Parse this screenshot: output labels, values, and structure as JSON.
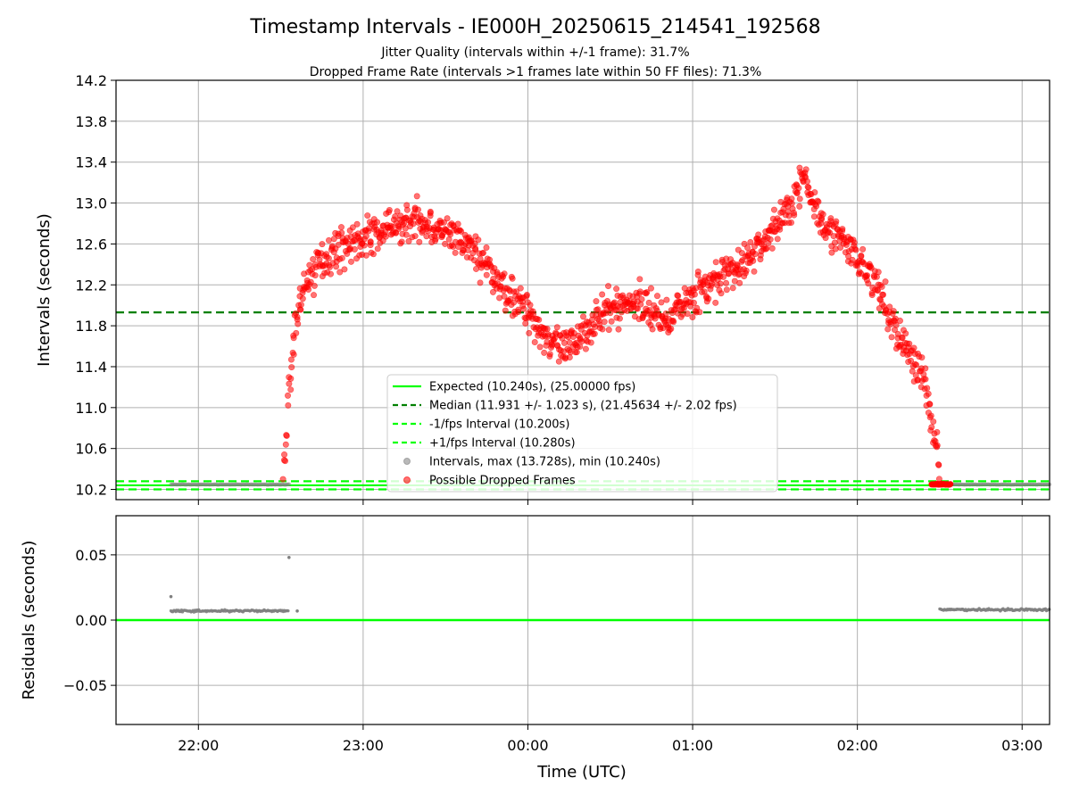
{
  "chart_data": [
    {
      "type": "scatter",
      "title": "Timestamp Intervals - IE000H_20250615_214541_192568",
      "subtitle_lines": [
        "Jitter Quality (intervals within +/-1 frame): 31.7%",
        "Dropped Frame Rate (intervals >1 frames late within 50 FF files): 71.3%"
      ],
      "ylabel": "Intervals (seconds)",
      "ylim": [
        10.1,
        14.2
      ],
      "yticks": [
        "10.2",
        "10.6",
        "11.0",
        "11.4",
        "11.8",
        "12.2",
        "12.6",
        "13.0",
        "13.4",
        "13.8",
        "14.2"
      ],
      "xlim": [
        "21:30",
        "03:10"
      ],
      "xticks": [
        "22:00",
        "23:00",
        "00:00",
        "01:00",
        "02:00",
        "03:00"
      ],
      "grid": true,
      "legend_position": "lower center",
      "lines": {
        "expected": 10.24,
        "median": 11.931,
        "minus_fps": 10.2,
        "plus_fps": 10.28
      },
      "legend": [
        "Expected (10.240s), (25.00000 fps)",
        "Median (11.931 +/- 1.023 s), (21.45634 +/- 2.02 fps)",
        "-1/fps Interval (10.200s)",
        "+1/fps Interval (10.280s)",
        "Intervals, max (13.728s), min (10.240s)",
        "Possible Dropped Frames"
      ],
      "dropped_frames_curve": [
        [
          "22:31",
          10.4
        ],
        [
          "22:33",
          11.1
        ],
        [
          "22:36",
          11.95
        ],
        [
          "22:40",
          12.25
        ],
        [
          "22:45",
          12.45
        ],
        [
          "22:50",
          12.55
        ],
        [
          "23:00",
          12.65
        ],
        [
          "23:10",
          12.75
        ],
        [
          "23:20",
          12.85
        ],
        [
          "23:30",
          12.7
        ],
        [
          "23:40",
          12.55
        ],
        [
          "23:50",
          12.2
        ],
        [
          "00:00",
          11.95
        ],
        [
          "00:05",
          11.75
        ],
        [
          "00:10",
          11.6
        ],
        [
          "00:15",
          11.55
        ],
        [
          "00:20",
          11.75
        ],
        [
          "00:30",
          11.95
        ],
        [
          "00:40",
          12.05
        ],
        [
          "00:50",
          11.85
        ],
        [
          "01:00",
          12.1
        ],
        [
          "01:10",
          12.25
        ],
        [
          "01:20",
          12.45
        ],
        [
          "01:30",
          12.75
        ],
        [
          "01:35",
          12.95
        ],
        [
          "01:40",
          13.25
        ],
        [
          "01:45",
          12.95
        ],
        [
          "01:50",
          12.75
        ],
        [
          "02:00",
          12.45
        ],
        [
          "02:05",
          12.3
        ],
        [
          "02:10",
          12.0
        ],
        [
          "02:15",
          11.7
        ],
        [
          "02:20",
          11.5
        ],
        [
          "02:24",
          11.3
        ],
        [
          "02:27",
          10.9
        ],
        [
          "02:29",
          10.6
        ],
        [
          "02:30",
          10.45
        ]
      ],
      "normal_interval_segments": [
        {
          "from": "21:50",
          "to": "22:33",
          "value": 10.248
        },
        {
          "from": "02:30",
          "to": "03:10",
          "value": 10.248
        }
      ],
      "dropped_cluster_baseline": {
        "from": "02:27",
        "to": "02:34",
        "value": 10.25
      }
    },
    {
      "type": "scatter",
      "ylabel": "Residuals (seconds)",
      "xlabel": "Time (UTC)",
      "ylim": [
        -0.08,
        0.08
      ],
      "yticks": [
        "0.05",
        "0.00",
        "−0.05"
      ],
      "ytick_values": [
        0.05,
        0.0,
        -0.05
      ],
      "zero_line": 0.0,
      "series": [
        {
          "from": "21:50",
          "to": "22:33",
          "value": 0.007
        },
        {
          "from": "02:30",
          "to": "03:10",
          "value": 0.008
        }
      ],
      "outliers": [
        [
          "21:50",
          0.018
        ],
        [
          "22:33",
          0.048
        ],
        [
          "22:36",
          0.007
        ]
      ]
    }
  ],
  "colors": {
    "expected": "#00ff00",
    "median": "#008000",
    "fps_interval": "#00ff00",
    "intervals": "#808080",
    "dropped": "#ff0000",
    "grid": "#b0b0b0"
  }
}
